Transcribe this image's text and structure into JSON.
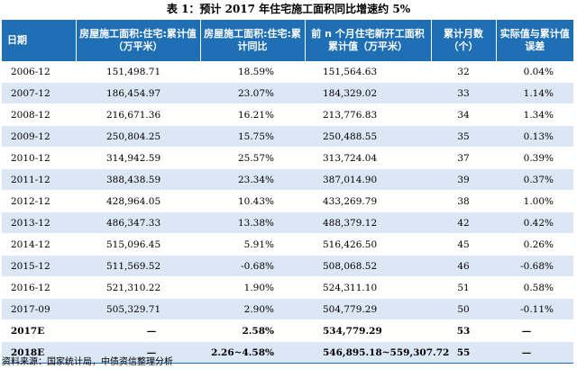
{
  "title": "表 1：预计 2017 年住宅施工面积同比增速约 5%",
  "headers": [
    "日期",
    "房屋施工面积:住宅:累计值（万平米）",
    "房屋施工面积:住宅:累计同比",
    "前 n 个月住宅新开工面积累计值（万平米）",
    "累计月数（个）",
    "实际值与累计值误差"
  ],
  "rows": [
    [
      "2006-12",
      "151,498.71",
      "18.59%",
      "151,564.63",
      "32",
      "0.04%"
    ],
    [
      "2007-12",
      "186,454.97",
      "23.07%",
      "184,329.02",
      "33",
      "1.14%"
    ],
    [
      "2008-12",
      "216,671.36",
      "16.21%",
      "213,776.83",
      "34",
      "1.34%"
    ],
    [
      "2009-12",
      "250,804.25",
      "15.75%",
      "250,488.55",
      "35",
      "0.13%"
    ],
    [
      "2010-12",
      "314,942.59",
      "25.57%",
      "313,724.04",
      "37",
      "0.39%"
    ],
    [
      "2011-12",
      "388,438.59",
      "23.34%",
      "387,014.90",
      "39",
      "0.37%"
    ],
    [
      "2012-12",
      "428,964.05",
      "10.43%",
      "433,269.79",
      "38",
      "1.00%"
    ],
    [
      "2013-12",
      "486,347.33",
      "13.38%",
      "488,379.12",
      "42",
      "0.42%"
    ],
    [
      "2014-12",
      "515,096.45",
      "5.91%",
      "516,426.50",
      "45",
      "0.26%"
    ],
    [
      "2015-12",
      "511,569.52",
      "-0.68%",
      "508,068.52",
      "46",
      "-0.68%"
    ],
    [
      "2016-12",
      "521,310.22",
      "1.90%",
      "524,311.10",
      "51",
      "0.58%"
    ],
    [
      "2017-09",
      "505,329.71",
      "2.90%",
      "504,779.29",
      "50",
      "-0.11%"
    ],
    [
      "2017E",
      "—",
      "2.58%",
      "534,779.29",
      "53",
      "—"
    ],
    [
      "2018E",
      "—",
      "2.26~4.58%",
      "546,895.18~559,307.72",
      "55",
      "—"
    ]
  ],
  "source": "资料来源：国家统计局，中债资信整理分析"
}
